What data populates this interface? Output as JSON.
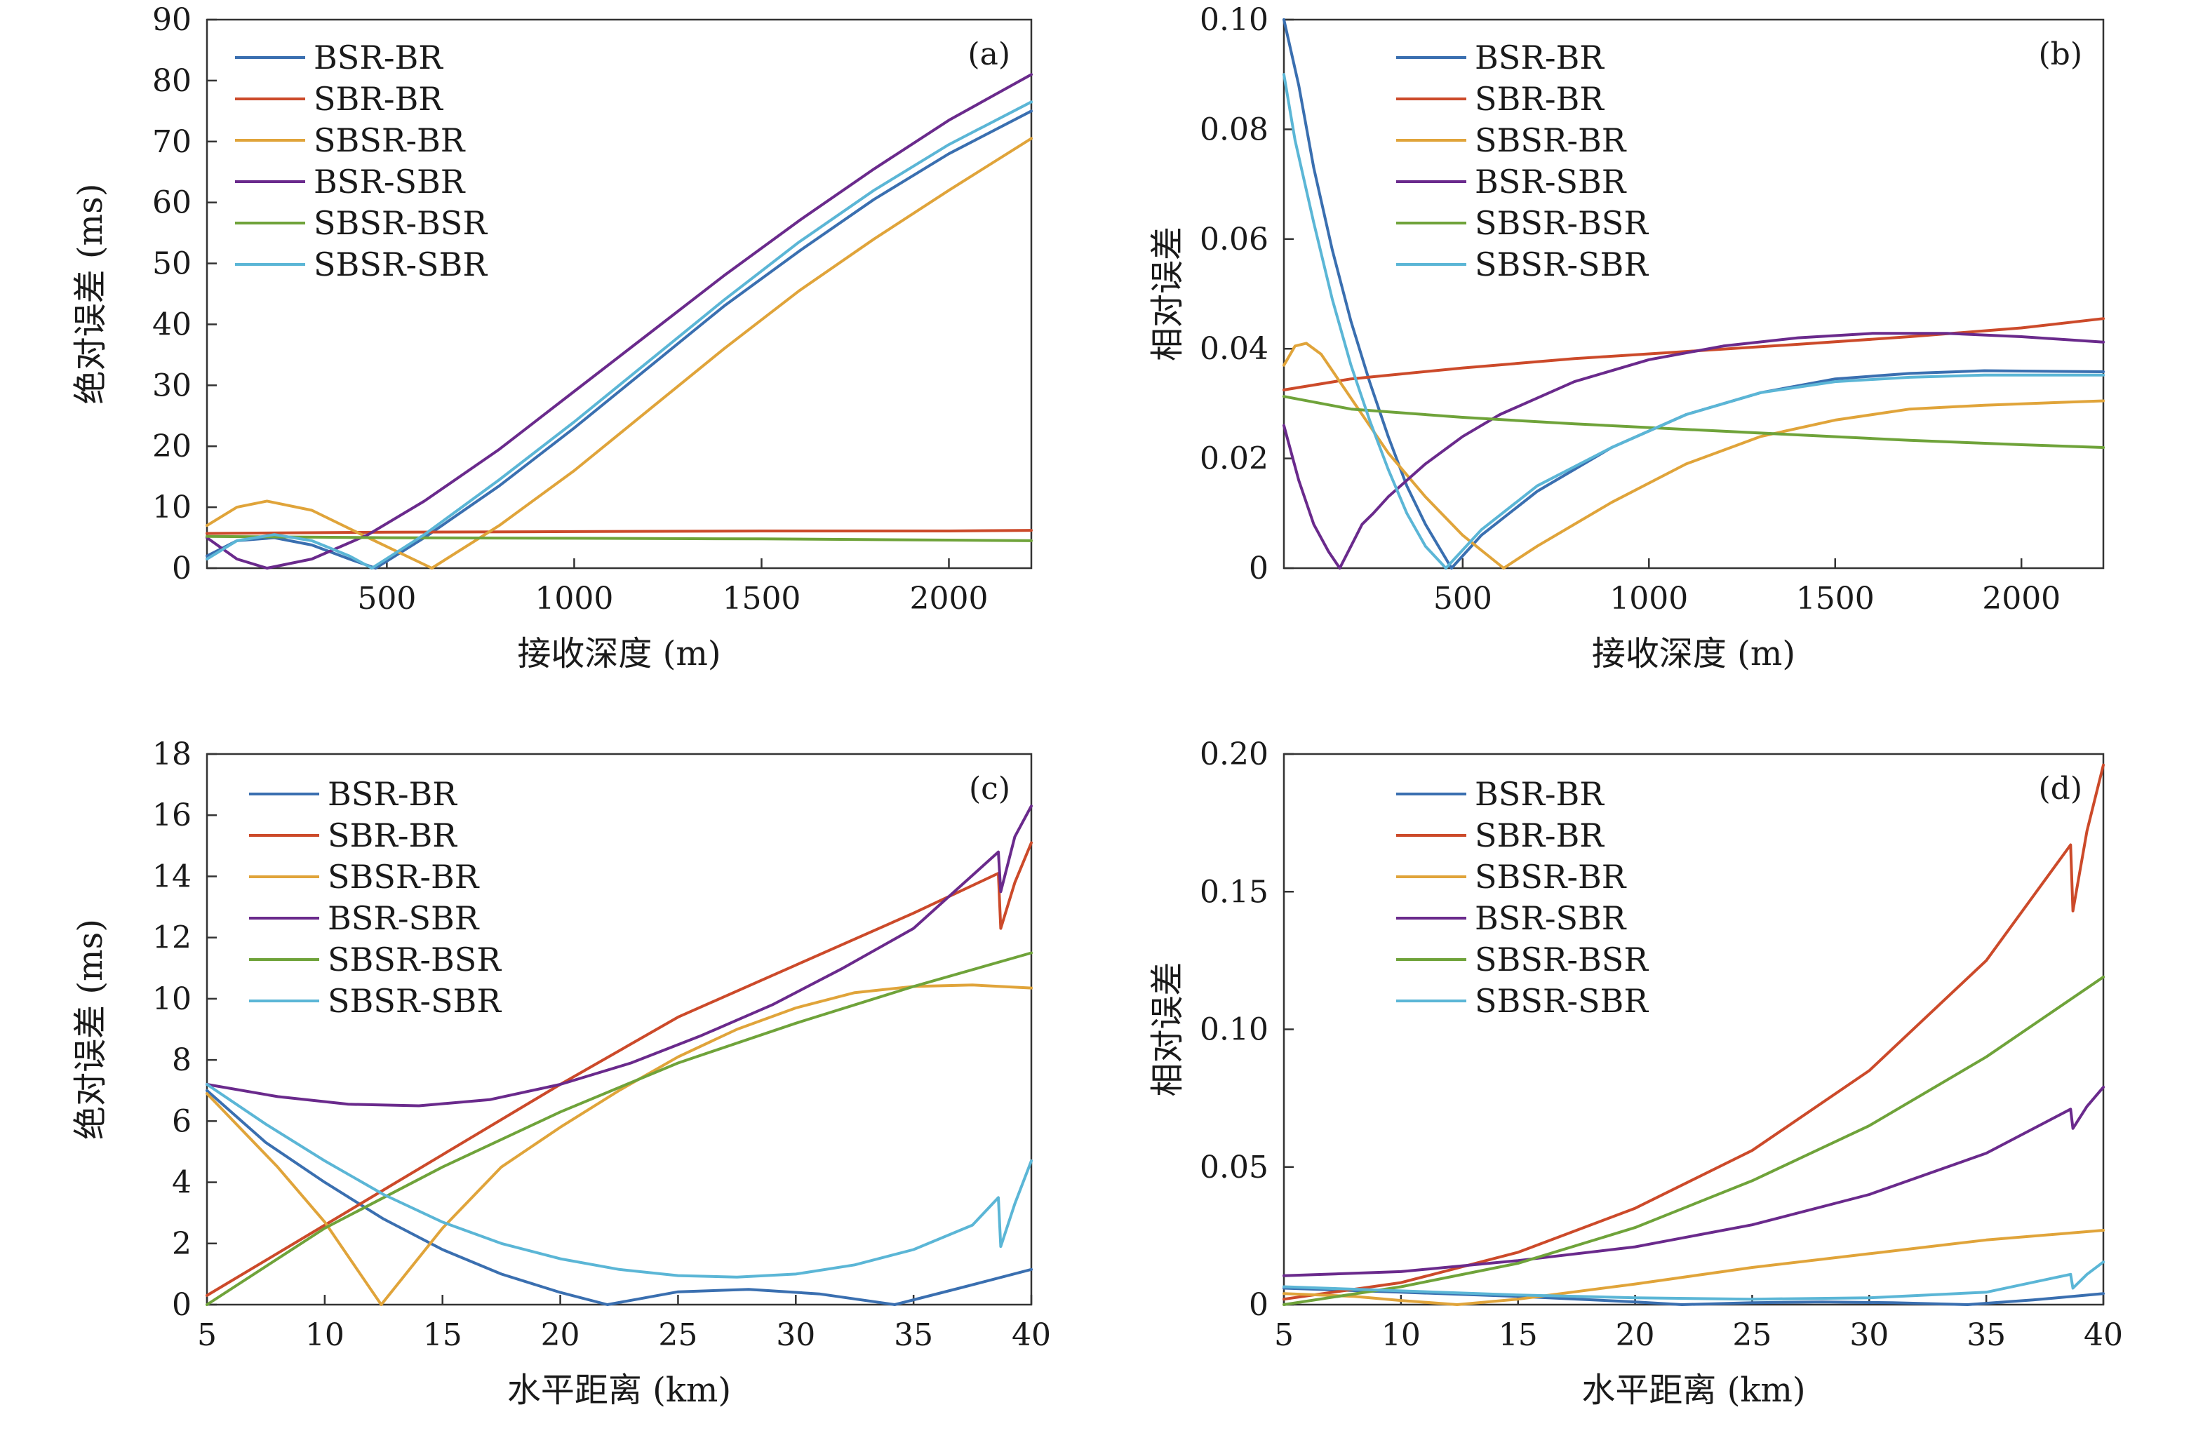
{
  "colors": {
    "BSR-BR": "#3a6fb0",
    "SBR-BR": "#cc4a2a",
    "SBSR-BR": "#e0a43a",
    "BSR-SBR": "#6a2a8c",
    "SBSR-BSR": "#6fa33a",
    "SBSR-SBR": "#5bb6d6",
    "axis": "#333333"
  },
  "chart_data": [
    {
      "type": "line",
      "panel": "(a)",
      "xlabel": "接收深度 (m)",
      "ylabel": "绝对误差 (ms)",
      "xlim": [
        20,
        2220
      ],
      "ylim": [
        0,
        90
      ],
      "xticks": [
        500,
        1000,
        1500,
        2000
      ],
      "yticks": [
        0,
        10,
        20,
        30,
        40,
        50,
        60,
        70,
        80,
        90
      ],
      "xtick_labels": [
        "500",
        "1000",
        "1500",
        "2000"
      ],
      "ytick_labels": [
        "0",
        "10",
        "20",
        "30",
        "40",
        "50",
        "60",
        "70",
        "80",
        "90"
      ],
      "legend_position": "top-left",
      "series": [
        {
          "name": "BSR-BR",
          "x": [
            20,
            100,
            200,
            300,
            400,
            470,
            600,
            800,
            1000,
            1200,
            1400,
            1600,
            1800,
            2000,
            2220
          ],
          "y": [
            2,
            4.5,
            5,
            3.8,
            1.5,
            0,
            5,
            13.5,
            23,
            33,
            43,
            52,
            60.5,
            68,
            75
          ]
        },
        {
          "name": "SBR-BR",
          "x": [
            20,
            500,
            1000,
            1500,
            2000,
            2220
          ],
          "y": [
            5.7,
            5.9,
            6,
            6.1,
            6.1,
            6.2
          ]
        },
        {
          "name": "SBSR-BR",
          "x": [
            20,
            100,
            180,
            300,
            450,
            620,
            800,
            1000,
            1200,
            1400,
            1600,
            1800,
            2000,
            2220
          ],
          "y": [
            7,
            10,
            11,
            9.5,
            5,
            0,
            7,
            16,
            26,
            36,
            45.5,
            54,
            62,
            70.5
          ]
        },
        {
          "name": "BSR-SBR",
          "x": [
            20,
            100,
            180,
            300,
            450,
            600,
            800,
            1000,
            1200,
            1400,
            1600,
            1800,
            2000,
            2220
          ],
          "y": [
            5,
            1.5,
            0,
            1.5,
            5.5,
            11,
            19.5,
            29,
            38.5,
            48,
            57,
            65.5,
            73.5,
            81
          ]
        },
        {
          "name": "SBSR-BSR",
          "x": [
            20,
            500,
            1000,
            1500,
            2000,
            2220
          ],
          "y": [
            5.2,
            5,
            4.9,
            4.8,
            4.6,
            4.5
          ]
        },
        {
          "name": "SBSR-SBR",
          "x": [
            20,
            100,
            200,
            300,
            400,
            460,
            600,
            800,
            1000,
            1200,
            1400,
            1600,
            1800,
            2000,
            2220
          ],
          "y": [
            1.5,
            4.5,
            5.5,
            4.5,
            2,
            0,
            5.5,
            14.5,
            24,
            34,
            44,
            53.5,
            62,
            69.5,
            76.5
          ]
        }
      ]
    },
    {
      "type": "line",
      "panel": "(b)",
      "xlabel": "接收深度 (m)",
      "ylabel": "相对误差",
      "xlim": [
        20,
        2220
      ],
      "ylim": [
        0,
        0.1
      ],
      "xticks": [
        500,
        1000,
        1500,
        2000
      ],
      "yticks": [
        0,
        0.02,
        0.04,
        0.06,
        0.08,
        0.1
      ],
      "xtick_labels": [
        "500",
        "1000",
        "1500",
        "2000"
      ],
      "ytick_labels": [
        "0",
        "0.02",
        "0.04",
        "0.06",
        "0.08",
        "0.10"
      ],
      "legend_position": "top-center",
      "series": [
        {
          "name": "BSR-BR",
          "x": [
            20,
            60,
            100,
            150,
            200,
            250,
            300,
            350,
            400,
            470,
            550,
            700,
            900,
            1100,
            1300,
            1500,
            1700,
            1900,
            2220
          ],
          "y": [
            0.1,
            0.088,
            0.073,
            0.058,
            0.045,
            0.034,
            0.024,
            0.015,
            0.008,
            0,
            0.006,
            0.014,
            0.022,
            0.028,
            0.032,
            0.0345,
            0.0355,
            0.036,
            0.0358
          ]
        },
        {
          "name": "SBR-BR",
          "x": [
            20,
            200,
            500,
            800,
            1100,
            1400,
            1700,
            2000,
            2220
          ],
          "y": [
            0.0325,
            0.0345,
            0.0365,
            0.0382,
            0.0395,
            0.0408,
            0.0422,
            0.0438,
            0.0455
          ]
        },
        {
          "name": "SBSR-BR",
          "x": [
            20,
            50,
            80,
            120,
            200,
            300,
            400,
            500,
            610,
            700,
            900,
            1100,
            1300,
            1500,
            1700,
            1900,
            2220
          ],
          "y": [
            0.037,
            0.0405,
            0.041,
            0.039,
            0.031,
            0.021,
            0.013,
            0.006,
            0,
            0.004,
            0.012,
            0.019,
            0.024,
            0.027,
            0.029,
            0.0297,
            0.0305
          ]
        },
        {
          "name": "BSR-SBR",
          "x": [
            20,
            60,
            100,
            140,
            170,
            200,
            230,
            260,
            300,
            400,
            500,
            600,
            800,
            1000,
            1200,
            1400,
            1600,
            1800,
            2000,
            2220
          ],
          "y": [
            0.026,
            0.016,
            0.008,
            0.003,
            0,
            0.004,
            0.008,
            0.01,
            0.013,
            0.019,
            0.024,
            0.028,
            0.034,
            0.038,
            0.0405,
            0.042,
            0.0428,
            0.0428,
            0.0422,
            0.0412
          ]
        },
        {
          "name": "SBSR-BSR",
          "x": [
            20,
            200,
            500,
            800,
            1100,
            1400,
            1700,
            2000,
            2220
          ],
          "y": [
            0.0313,
            0.029,
            0.0275,
            0.0263,
            0.0253,
            0.0243,
            0.0233,
            0.0225,
            0.022
          ]
        },
        {
          "name": "SBSR-SBR",
          "x": [
            20,
            50,
            100,
            150,
            200,
            250,
            300,
            350,
            400,
            455,
            550,
            700,
            900,
            1100,
            1300,
            1500,
            1700,
            1900,
            2220
          ],
          "y": [
            0.09,
            0.078,
            0.063,
            0.049,
            0.037,
            0.027,
            0.018,
            0.01,
            0.004,
            0,
            0.007,
            0.015,
            0.022,
            0.028,
            0.032,
            0.034,
            0.0348,
            0.0352,
            0.0352
          ]
        }
      ]
    },
    {
      "type": "line",
      "panel": "(c)",
      "xlabel": "水平距离 (km)",
      "ylabel": "绝对误差 (ms)",
      "xlim": [
        5,
        40
      ],
      "ylim": [
        0,
        18
      ],
      "xticks": [
        5,
        10,
        15,
        20,
        25,
        30,
        35,
        40
      ],
      "yticks": [
        0,
        2,
        4,
        6,
        8,
        10,
        12,
        14,
        16,
        18
      ],
      "xtick_labels": [
        "5",
        "10",
        "15",
        "20",
        "25",
        "30",
        "35",
        "40"
      ],
      "ytick_labels": [
        "0",
        "2",
        "4",
        "6",
        "8",
        "10",
        "12",
        "14",
        "16",
        "18"
      ],
      "legend_position": "top-left",
      "series": [
        {
          "name": "BSR-BR",
          "x": [
            5,
            7.5,
            10,
            12.5,
            15,
            17.5,
            20,
            22,
            25,
            28,
            31,
            34.2,
            37,
            40
          ],
          "y": [
            7,
            5.3,
            4,
            2.8,
            1.8,
            1,
            0.4,
            0,
            0.42,
            0.5,
            0.35,
            0,
            0.55,
            1.15
          ]
        },
        {
          "name": "SBR-BR",
          "x": [
            5,
            10,
            15,
            20,
            25,
            30,
            35,
            38.6,
            38.7,
            39.3,
            40
          ],
          "y": [
            0.3,
            2.6,
            4.9,
            7.2,
            9.4,
            11.1,
            12.8,
            14.1,
            12.3,
            13.8,
            15.1
          ]
        },
        {
          "name": "SBSR-BR",
          "x": [
            5,
            8,
            10,
            12.4,
            15,
            17.5,
            20,
            22.5,
            25,
            27.5,
            30,
            32.5,
            35,
            37.5,
            40
          ],
          "y": [
            6.9,
            4.5,
            2.7,
            0,
            2.5,
            4.5,
            5.8,
            7,
            8.1,
            9,
            9.7,
            10.2,
            10.4,
            10.45,
            10.35
          ]
        },
        {
          "name": "BSR-SBR",
          "x": [
            5,
            8,
            11,
            14,
            17,
            20,
            23,
            26,
            29,
            32,
            35,
            38.6,
            38.7,
            39.3,
            40
          ],
          "y": [
            7.2,
            6.8,
            6.55,
            6.5,
            6.7,
            7.2,
            7.9,
            8.8,
            9.8,
            11,
            12.3,
            14.8,
            13.5,
            15.3,
            16.3
          ]
        },
        {
          "name": "SBSR-BSR",
          "x": [
            5,
            10,
            15,
            20,
            25,
            30,
            35,
            40
          ],
          "y": [
            0,
            2.5,
            4.5,
            6.3,
            7.9,
            9.2,
            10.4,
            11.5
          ]
        },
        {
          "name": "SBSR-SBR",
          "x": [
            5,
            7.5,
            10,
            12.5,
            15,
            17.5,
            20,
            22.5,
            25,
            27.5,
            30,
            32.5,
            35,
            37.5,
            38.6,
            38.7,
            39.3,
            40
          ],
          "y": [
            7.2,
            5.9,
            4.7,
            3.6,
            2.7,
            2,
            1.5,
            1.15,
            0.95,
            0.9,
            1,
            1.3,
            1.8,
            2.6,
            3.5,
            1.9,
            3.3,
            4.7
          ]
        }
      ]
    },
    {
      "type": "line",
      "panel": "(d)",
      "xlabel": "水平距离 (km)",
      "ylabel": "相对误差",
      "xlim": [
        5,
        40
      ],
      "ylim": [
        0,
        0.2
      ],
      "xticks": [
        5,
        10,
        15,
        20,
        25,
        30,
        35,
        40
      ],
      "yticks": [
        0,
        0.05,
        0.1,
        0.15,
        0.2
      ],
      "xtick_labels": [
        "5",
        "10",
        "15",
        "20",
        "25",
        "30",
        "35",
        "40"
      ],
      "ytick_labels": [
        "0",
        "0.05",
        "0.10",
        "0.15",
        "0.20"
      ],
      "legend_position": "top-center",
      "series": [
        {
          "name": "BSR-BR",
          "x": [
            5,
            10,
            15,
            20,
            22,
            25,
            28,
            31,
            34.2,
            37,
            40
          ],
          "y": [
            0.006,
            0.0045,
            0.003,
            0.001,
            0,
            0.0007,
            0.001,
            0.0007,
            0,
            0.0017,
            0.004
          ]
        },
        {
          "name": "SBR-BR",
          "x": [
            5,
            10,
            15,
            20,
            25,
            30,
            35,
            38.6,
            38.7,
            39.3,
            40
          ],
          "y": [
            0.002,
            0.008,
            0.019,
            0.035,
            0.056,
            0.085,
            0.125,
            0.167,
            0.143,
            0.172,
            0.196
          ]
        },
        {
          "name": "SBSR-BR",
          "x": [
            5,
            8,
            10,
            12.4,
            15,
            20,
            25,
            30,
            35,
            40
          ],
          "y": [
            0.004,
            0.003,
            0.0015,
            0,
            0.002,
            0.0075,
            0.0135,
            0.0185,
            0.0235,
            0.027
          ]
        },
        {
          "name": "BSR-SBR",
          "x": [
            5,
            10,
            15,
            20,
            25,
            30,
            35,
            38.6,
            38.7,
            39.3,
            40
          ],
          "y": [
            0.0105,
            0.012,
            0.016,
            0.021,
            0.029,
            0.04,
            0.055,
            0.071,
            0.064,
            0.072,
            0.079
          ]
        },
        {
          "name": "SBSR-BSR",
          "x": [
            5,
            10,
            15,
            20,
            25,
            30,
            35,
            40
          ],
          "y": [
            0,
            0.0065,
            0.015,
            0.028,
            0.045,
            0.065,
            0.09,
            0.119
          ]
        },
        {
          "name": "SBSR-SBR",
          "x": [
            5,
            10,
            15,
            20,
            25,
            30,
            35,
            38.6,
            38.7,
            39.3,
            40
          ],
          "y": [
            0.0065,
            0.005,
            0.0035,
            0.0025,
            0.002,
            0.0025,
            0.0045,
            0.011,
            0.006,
            0.011,
            0.0155
          ]
        }
      ]
    }
  ]
}
